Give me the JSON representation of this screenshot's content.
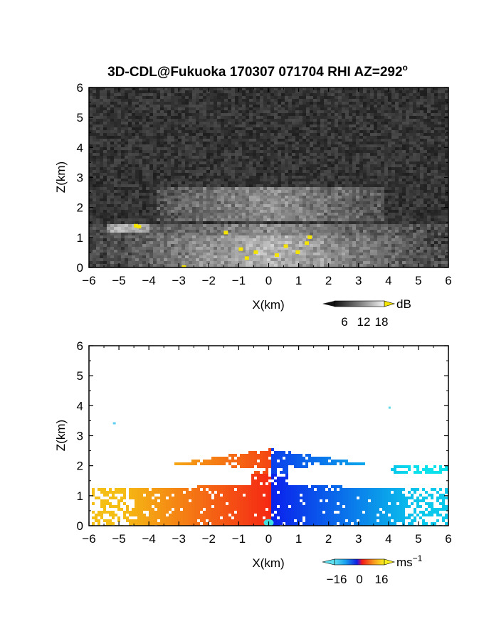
{
  "title": "3D-CDL@Fukuoka 170307 071704 RHI AZ=292",
  "title_superscript": "o",
  "chart_data": [
    {
      "type": "heatmap",
      "panel": "top",
      "quantity": "backscatter intensity",
      "xlabel": "X(km)",
      "ylabel": "Z(km)",
      "xlim": [
        -6,
        6
      ],
      "ylim": [
        0,
        6
      ],
      "xticks": [
        -6,
        -5,
        -4,
        -3,
        -2,
        -1,
        0,
        1,
        2,
        3,
        4,
        5,
        6
      ],
      "yticks": [
        0,
        1,
        2,
        3,
        4,
        5,
        6
      ],
      "colorbar": {
        "unit": "dB",
        "ticks": [
          "6",
          "12",
          "18"
        ],
        "range": [
          0,
          20
        ],
        "colormap": "grayscale",
        "high_color": "#f5e400"
      },
      "features": {
        "strong_layer_z_km": [
          1.0,
          2.7
        ],
        "noise_above_km": 2.8
      }
    },
    {
      "type": "heatmap",
      "panel": "bottom",
      "quantity": "Doppler radial velocity",
      "xlabel": "X(km)",
      "ylabel": "Z(km)",
      "xlim": [
        -6,
        6
      ],
      "ylim": [
        0,
        6
      ],
      "xticks": [
        -6,
        -5,
        -4,
        -3,
        -2,
        -1,
        0,
        1,
        2,
        3,
        4,
        5,
        6
      ],
      "yticks": [
        0,
        1,
        2,
        3,
        4,
        5,
        6
      ],
      "colorbar": {
        "unit": "ms",
        "unit_exponent": "−1",
        "ticks": [
          "−16",
          "0",
          "16"
        ],
        "range": [
          -20,
          20
        ],
        "colormap": "cyan-blue-red-yellow"
      },
      "features": {
        "upper_layer_z_km": [
          1.9,
          2.6
        ],
        "lower_layer_z_km": [
          0,
          1.4
        ],
        "velocity_sign_change_x_km": 0
      }
    }
  ]
}
